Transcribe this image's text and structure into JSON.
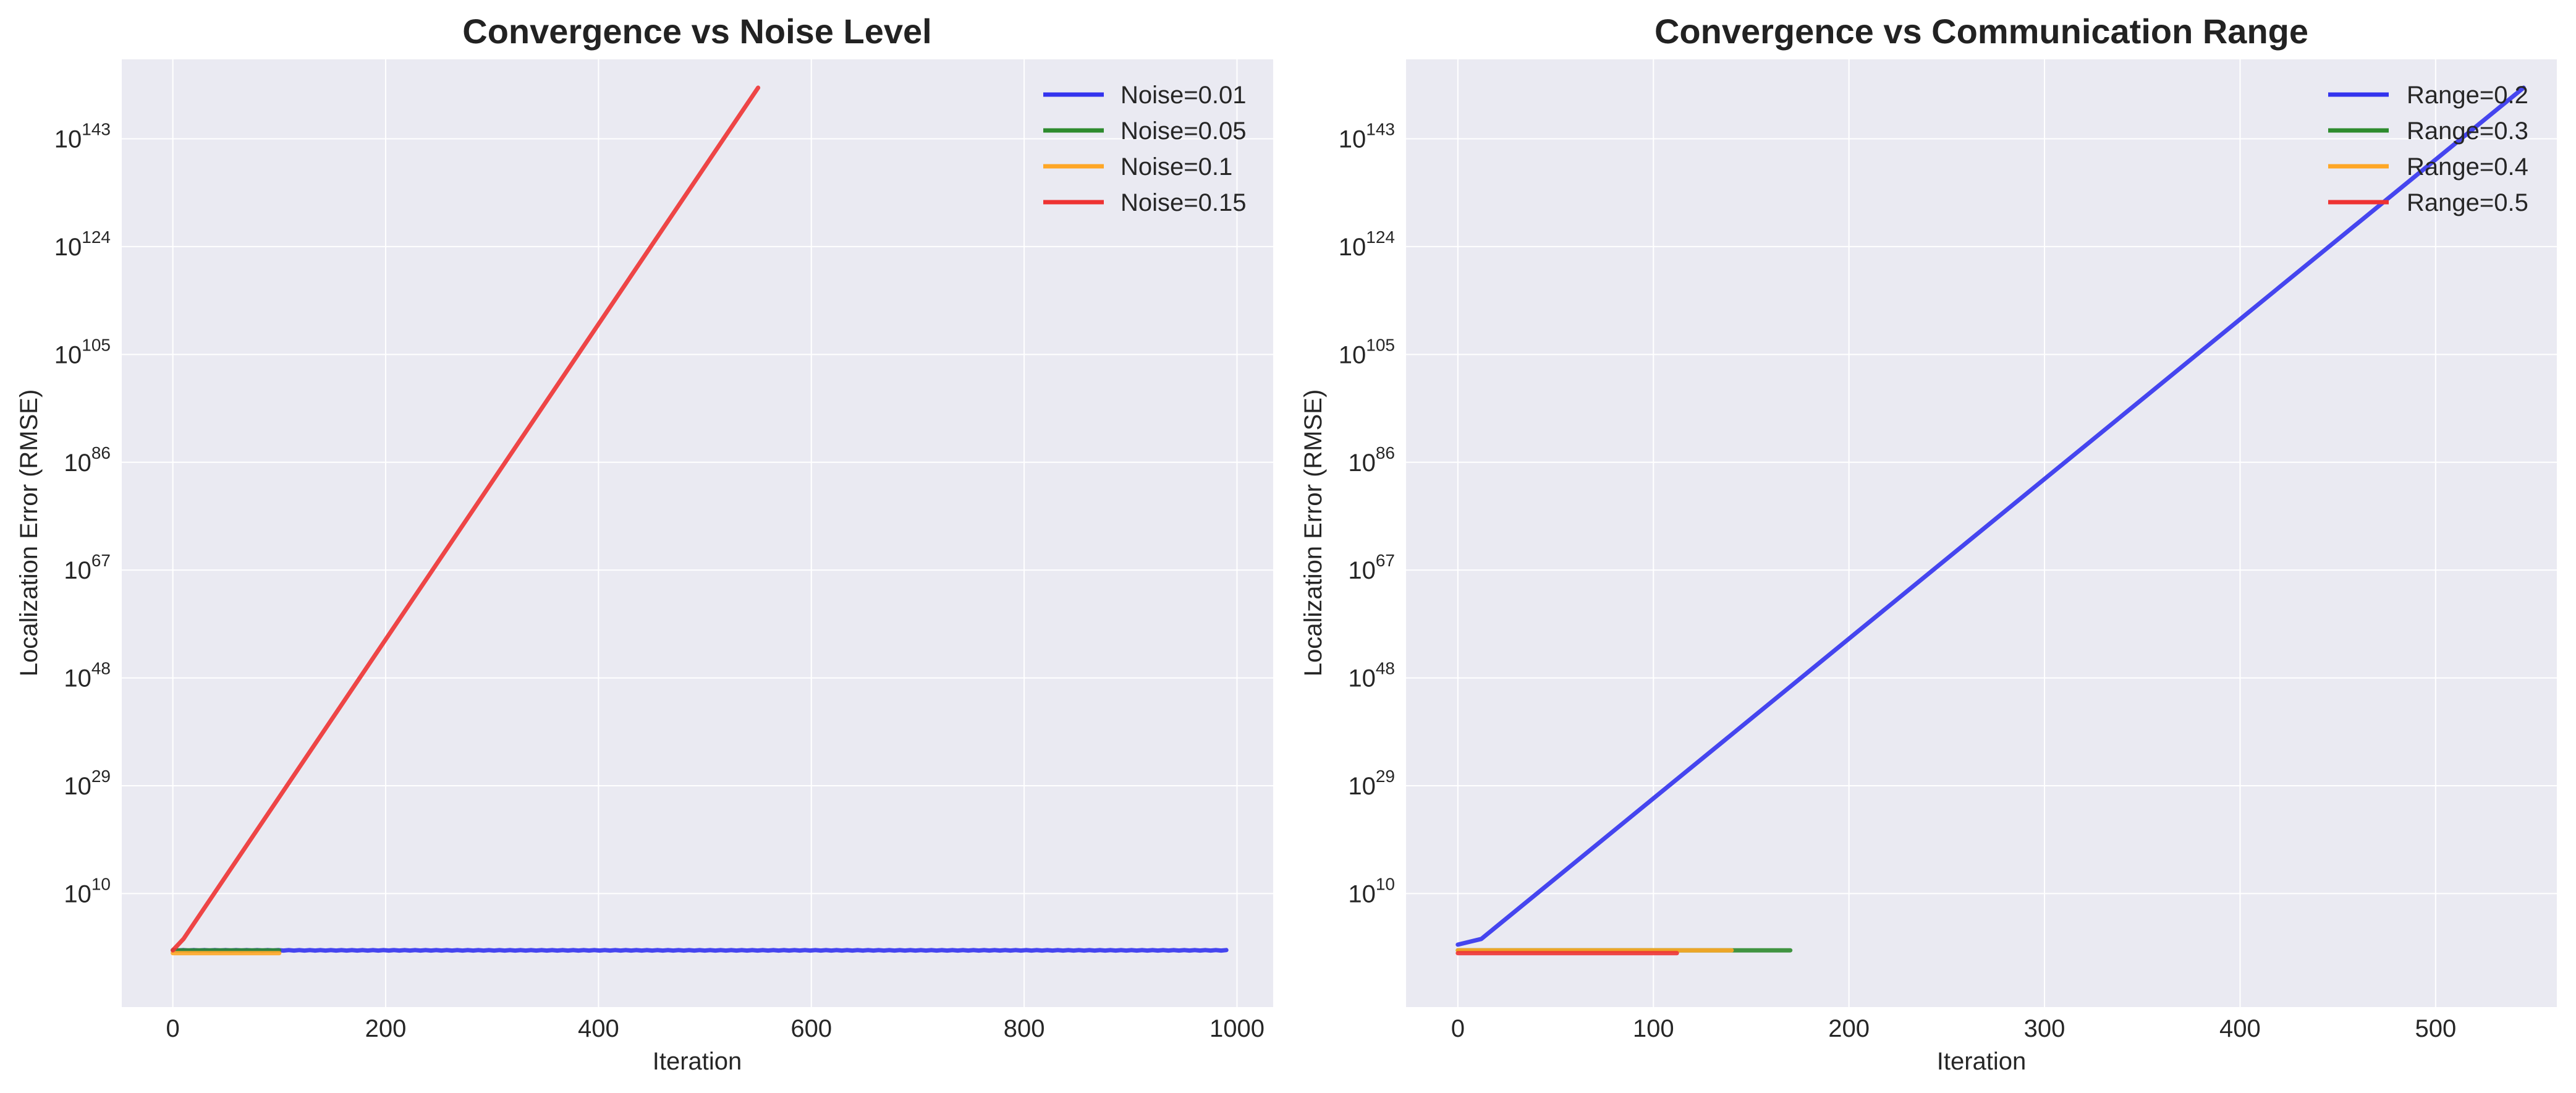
{
  "chart_data": [
    {
      "type": "line",
      "title": "Convergence vs Noise Level",
      "xlabel": "Iteration",
      "ylabel": "Localization Error (RMSE)",
      "yscale": "log",
      "xlim": [
        -48,
        1034
      ],
      "ylim_log10_exponent": [
        -10,
        157
      ],
      "xticks": [
        0,
        200,
        400,
        600,
        800,
        1000
      ],
      "xtick_labels": [
        "0",
        "200",
        "400",
        "600",
        "800",
        "1000"
      ],
      "yticks_exponent": [
        10,
        29,
        48,
        67,
        86,
        105,
        124,
        143
      ],
      "ytick_base": "10",
      "grid": true,
      "legend_position": "top-right",
      "series": [
        {
          "name": "Noise=0.01",
          "color": "#3333ee",
          "x": [
            0,
            990
          ],
          "log10_y": [
            0,
            0
          ],
          "ripple": true
        },
        {
          "name": "Noise=0.05",
          "color": "#2e8b2e",
          "x": [
            0,
            100
          ],
          "log10_y": [
            0,
            0
          ]
        },
        {
          "name": "Noise=0.1",
          "color": "#ffa726",
          "x": [
            0,
            100
          ],
          "log10_y": [
            -0.5,
            -0.5
          ]
        },
        {
          "name": "Noise=0.15",
          "color": "#ee3333",
          "x": [
            0,
            10,
            550
          ],
          "log10_y": [
            0,
            2,
            152
          ]
        }
      ]
    },
    {
      "type": "line",
      "title": "Convergence vs Communication Range",
      "xlabel": "Iteration",
      "ylabel": "Localization Error (RMSE)",
      "yscale": "log",
      "xlim": [
        -26.5,
        562
      ],
      "ylim_log10_exponent": [
        -10,
        157
      ],
      "xticks": [
        0,
        100,
        200,
        300,
        400,
        500
      ],
      "xtick_labels": [
        "0",
        "100",
        "200",
        "300",
        "400",
        "500"
      ],
      "yticks_exponent": [
        10,
        29,
        48,
        67,
        86,
        105,
        124,
        143
      ],
      "ytick_base": "10",
      "grid": true,
      "legend_position": "top-right",
      "series": [
        {
          "name": "Range=0.2",
          "color": "#3333ee",
          "x": [
            0,
            12,
            545
          ],
          "log10_y": [
            1,
            2,
            152
          ]
        },
        {
          "name": "Range=0.3",
          "color": "#2e8b2e",
          "x": [
            0,
            170
          ],
          "log10_y": [
            0,
            0
          ]
        },
        {
          "name": "Range=0.4",
          "color": "#ffa726",
          "x": [
            0,
            140
          ],
          "log10_y": [
            0,
            0
          ]
        },
        {
          "name": "Range=0.5",
          "color": "#ee3333",
          "x": [
            0,
            112
          ],
          "log10_y": [
            -0.5,
            -0.5
          ]
        }
      ]
    }
  ]
}
